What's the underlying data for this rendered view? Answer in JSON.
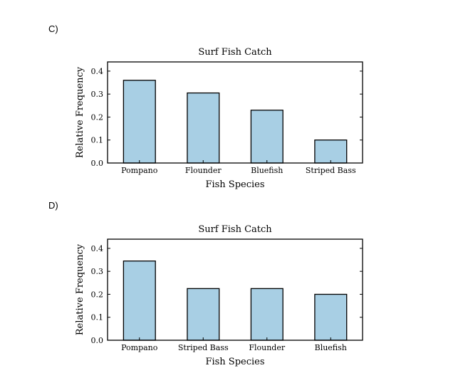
{
  "panels": [
    {
      "label": "C)"
    },
    {
      "label": "D)"
    }
  ],
  "chart_data": [
    {
      "type": "bar",
      "title": "Surf Fish Catch",
      "xlabel": "Fish Species",
      "ylabel": "Relative Frequency",
      "categories": [
        "Pompano",
        "Flounder",
        "Bluefish",
        "Striped Bass"
      ],
      "values": [
        0.36,
        0.305,
        0.23,
        0.1
      ],
      "ylim": [
        0,
        0.44
      ],
      "yticks": [
        "0.0",
        "0.1",
        "0.2",
        "0.3",
        "0.4"
      ],
      "bar_color": "#a8cfe4",
      "grid": false
    },
    {
      "type": "bar",
      "title": "Surf Fish Catch",
      "xlabel": "Fish Species",
      "ylabel": "Relative Frequency",
      "categories": [
        "Pompano",
        "Striped Bass",
        "Flounder",
        "Bluefish"
      ],
      "values": [
        0.345,
        0.225,
        0.225,
        0.2
      ],
      "ylim": [
        0,
        0.44
      ],
      "yticks": [
        "0.0",
        "0.1",
        "0.2",
        "0.3",
        "0.4"
      ],
      "bar_color": "#a8cfe4",
      "grid": false
    }
  ]
}
